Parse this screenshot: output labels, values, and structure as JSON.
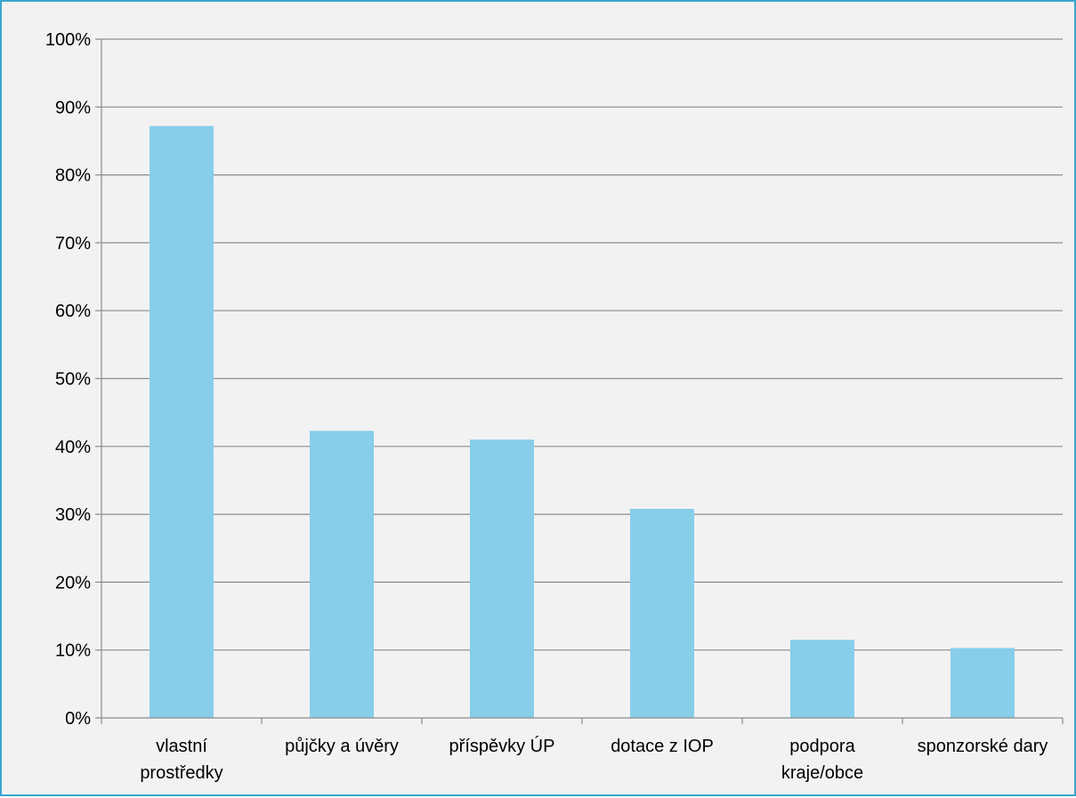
{
  "chart_data": {
    "type": "bar",
    "categories": [
      [
        "vlastní",
        "prostředky"
      ],
      [
        "půjčky a úvěry"
      ],
      [
        "příspěvky ÚP"
      ],
      [
        "dotace z IOP"
      ],
      [
        "podpora",
        "kraje/obce"
      ],
      [
        "sponzorské dary"
      ]
    ],
    "values": [
      87.2,
      42.3,
      41.0,
      30.8,
      11.5,
      10.3
    ],
    "ylim": [
      0,
      100
    ],
    "yticks": [
      "0%",
      "10%",
      "20%",
      "30%",
      "40%",
      "50%",
      "60%",
      "70%",
      "80%",
      "90%",
      "100%"
    ],
    "grid": true,
    "title": "",
    "xlabel": "",
    "ylabel": "",
    "colors": {
      "bar": "#87ceeb",
      "grid": "#8c8c8c",
      "background": "#f2f2f2",
      "border": "#3aa6d0"
    }
  }
}
